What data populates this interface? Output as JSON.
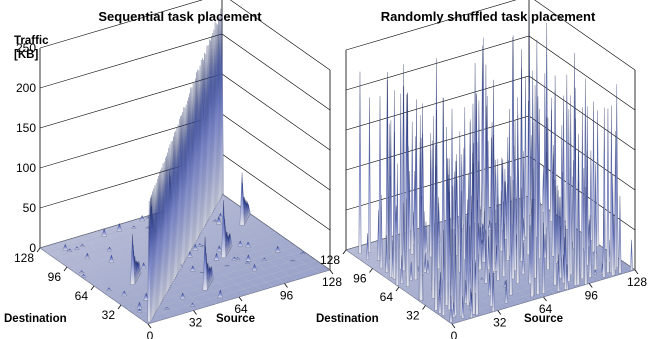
{
  "chart_data": [
    {
      "type": "surface3d",
      "title": "Sequential task placement",
      "zlabel_line1": "Traffic",
      "zlabel_line2": "[KB]",
      "xlabel": "Source",
      "ylabel": "Destination",
      "x_ticks": [
        "0",
        "32",
        "64",
        "96",
        "128"
      ],
      "y_ticks": [
        "32",
        "64",
        "96",
        "128"
      ],
      "z_ticks": [
        "0",
        "50",
        "100",
        "150",
        "200",
        "250"
      ],
      "xlim": [
        0,
        128
      ],
      "ylim": [
        0,
        128
      ],
      "zlim": [
        0,
        250
      ],
      "grid": true,
      "series": [
        {
          "pattern": "main diagonal ridge (destination = source)",
          "peak_start": 150,
          "peak_end": 240
        },
        {
          "pattern": "secondary diagonal ridges (offset ±32, ±64)",
          "peak": 80
        },
        {
          "pattern": "background noise",
          "peak": 10
        }
      ]
    },
    {
      "type": "surface3d",
      "title": "Randomly shuffled task placement",
      "xlabel": "Source",
      "ylabel": "Destination",
      "x_ticks": [
        "0",
        "32",
        "64",
        "96",
        "128"
      ],
      "y_ticks": [
        "32",
        "64",
        "96",
        "128"
      ],
      "xlim": [
        0,
        128
      ],
      "ylim": [
        0,
        128
      ],
      "zlim": [
        0,
        250
      ],
      "grid": true,
      "series": [
        {
          "pattern": "randomly scattered spikes",
          "peak": 250
        }
      ]
    }
  ],
  "colors": {
    "surface_high": "#1c2a5c",
    "surface_mid": "#5d6fd0",
    "surface_low": "#d4d6e2",
    "grid": "#000000"
  }
}
